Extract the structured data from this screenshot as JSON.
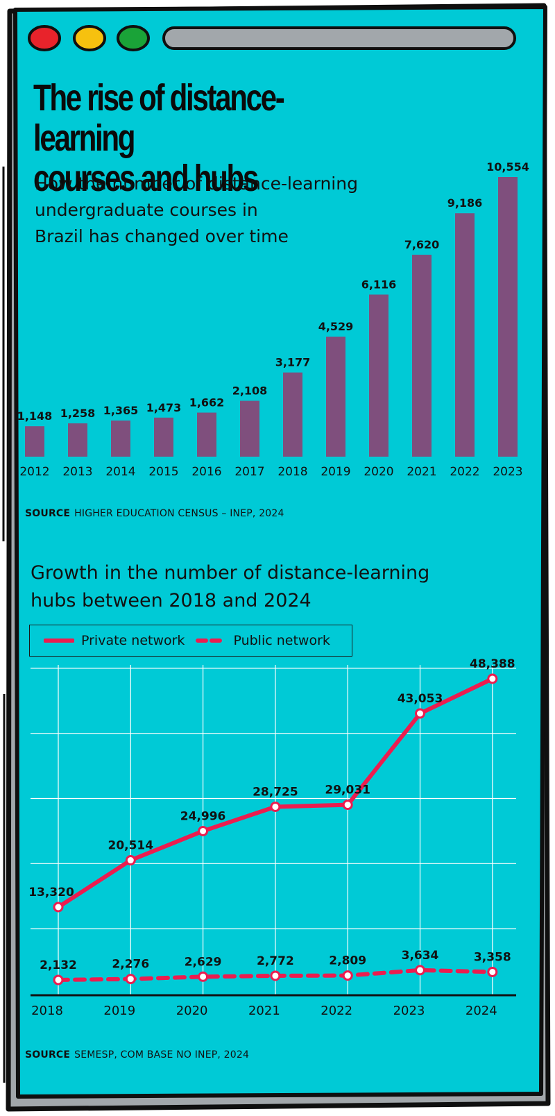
{
  "window_controls": {
    "colors": [
      "#e8232b",
      "#f6c10f",
      "#1aa338"
    ],
    "names": [
      "close",
      "minimize",
      "maximize"
    ]
  },
  "header": {
    "title_line1": "The rise of distance-learning",
    "title_line2": "courses and hubs",
    "subtitle_line1": "How the number of distance-learning",
    "subtitle_line2": "undergraduate courses in",
    "subtitle_line3": "Brazil has changed over time"
  },
  "section1": {
    "source_label": "SOURCE",
    "source_text": "HIGHER EDUCATION CENSUS – INEP, 2024"
  },
  "section2": {
    "heading_line1": "Growth in the number of distance-learning",
    "heading_line2": "hubs between 2018 and 2024",
    "legend_private": "Private network",
    "legend_public": "Public network",
    "source_label": "SOURCE",
    "source_text": "SEMESP, COM BASE NO INEP, 2024"
  },
  "colors": {
    "background": "#00cad6",
    "bar": "#7f4f7d",
    "line": "#ec1c4f",
    "frame": "#a2a7ab",
    "outline": "#0f0f0f"
  },
  "chart_data": [
    {
      "type": "bar",
      "title": "How the number of distance-learning undergraduate courses in Brazil has changed over time",
      "categories": [
        "2012",
        "2013",
        "2014",
        "2015",
        "2016",
        "2017",
        "2018",
        "2019",
        "2020",
        "2021",
        "2022",
        "2023"
      ],
      "values": [
        1148,
        1258,
        1365,
        1473,
        1662,
        2108,
        3177,
        4529,
        6116,
        7620,
        9186,
        10554
      ],
      "value_labels": [
        "1,148",
        "1,258",
        "1,365",
        "1,473",
        "1,662",
        "2,108",
        "3,177",
        "4,529",
        "6,116",
        "7,620",
        "9,186",
        "10,554"
      ],
      "xlabel": "",
      "ylabel": "",
      "ylim": [
        0,
        10554
      ],
      "grid": false
    },
    {
      "type": "line",
      "title": "Growth in the number of distance-learning hubs between 2018 and 2024",
      "x": [
        "2018",
        "2019",
        "2020",
        "2021",
        "2022",
        "2023",
        "2024"
      ],
      "series": [
        {
          "name": "Private network",
          "style": "solid",
          "values": [
            13320,
            20514,
            24996,
            28725,
            29031,
            43053,
            48388
          ],
          "labels": [
            "13,320",
            "20,514",
            "24,996",
            "28,725",
            "29,031",
            "43,053",
            "48,388"
          ]
        },
        {
          "name": "Public network",
          "style": "dashed",
          "values": [
            2132,
            2276,
            2629,
            2772,
            2809,
            3634,
            3358
          ],
          "labels": [
            "2,132",
            "2,276",
            "2,629",
            "2,772",
            "2,809",
            "3,634",
            "3,358"
          ]
        }
      ],
      "ylim": [
        0,
        50000
      ],
      "grid": true,
      "legend": "top-left"
    }
  ]
}
